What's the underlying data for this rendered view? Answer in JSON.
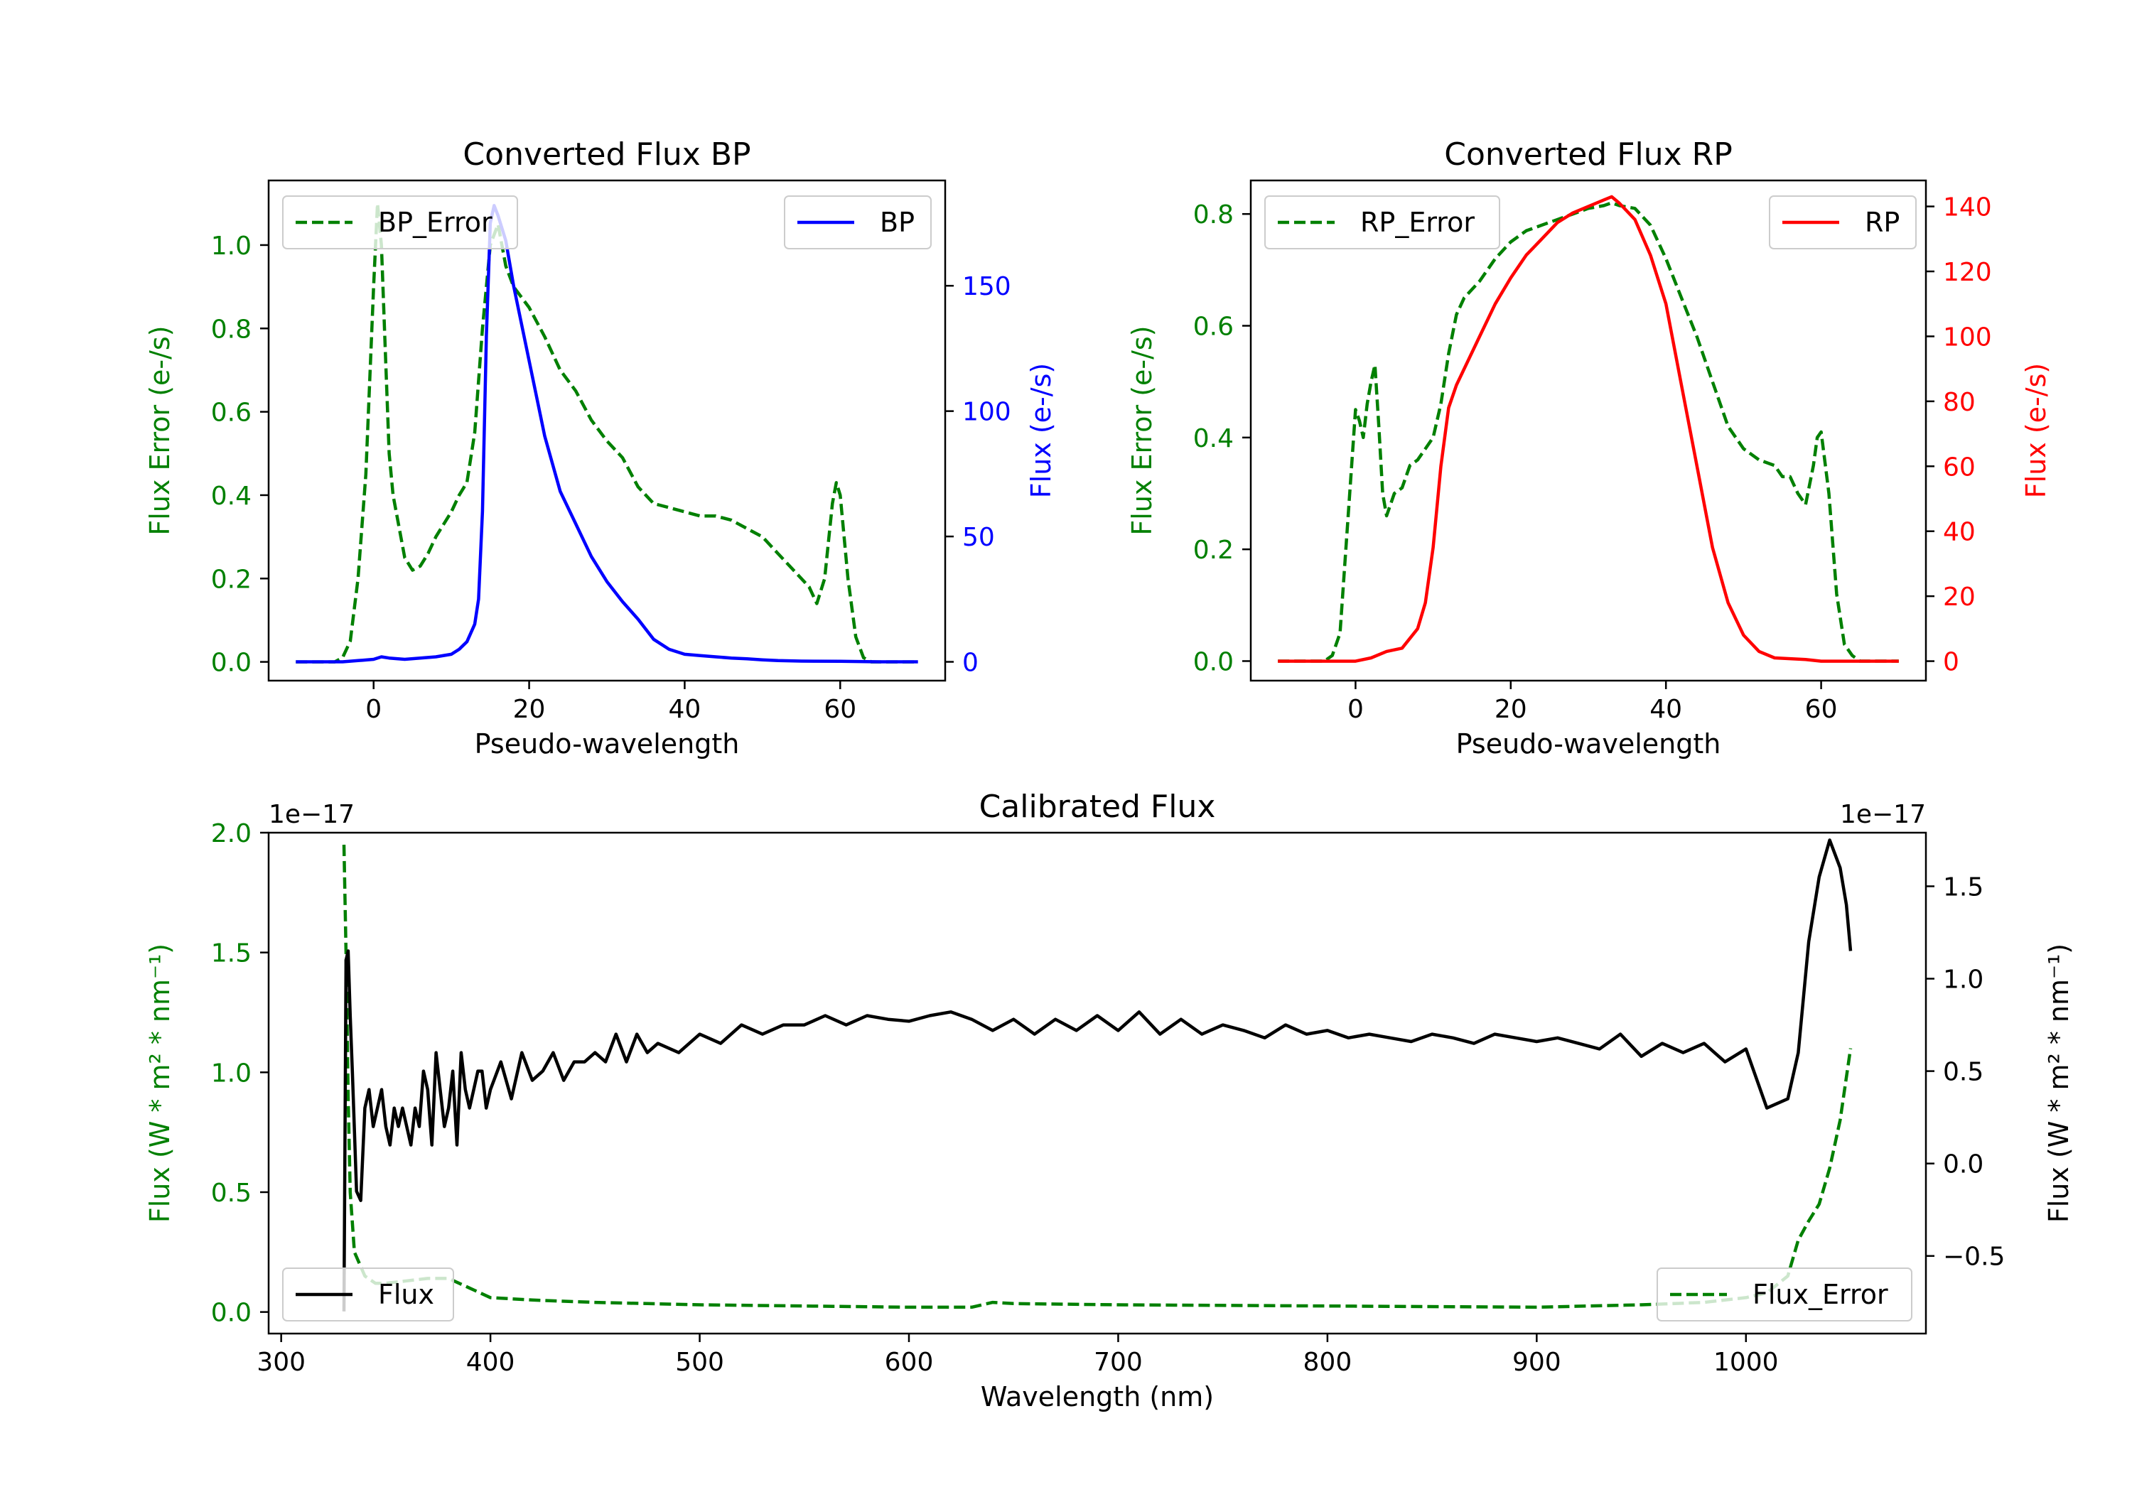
{
  "colors": {
    "green": "#008000",
    "blue": "#0000ff",
    "red": "#ff0000",
    "black": "#000000"
  },
  "chart_data": [
    {
      "id": "bp",
      "type": "line",
      "title": "Converted Flux BP",
      "xlabel": "Pseudo-wavelength",
      "ylabel_left": "Flux Error (e-/s)",
      "ylabel_right": "Flux (e-/s)",
      "xlim": [
        -13.5,
        73.5
      ],
      "ylim_left": [
        -0.045,
        1.155
      ],
      "ylim_right": [
        -7.5,
        192
      ],
      "xticks": [
        {
          "v": 0,
          "label": "0"
        },
        {
          "v": 20,
          "label": "20"
        },
        {
          "v": 40,
          "label": "40"
        },
        {
          "v": 60,
          "label": "60"
        }
      ],
      "yticks_left": [
        {
          "v": 0,
          "label": "0.0"
        },
        {
          "v": 0.2,
          "label": "0.2"
        },
        {
          "v": 0.4,
          "label": "0.4"
        },
        {
          "v": 0.6,
          "label": "0.6"
        },
        {
          "v": 0.8,
          "label": "0.8"
        },
        {
          "v": 1.0,
          "label": "1.0"
        }
      ],
      "yticks_right": [
        {
          "v": 0,
          "label": "0"
        },
        {
          "v": 50,
          "label": "50"
        },
        {
          "v": 100,
          "label": "100"
        },
        {
          "v": 150,
          "label": "150"
        }
      ],
      "series": [
        {
          "name": "BP_Error",
          "axis": "left",
          "color": "#008000",
          "dash": true,
          "legend": "top-left",
          "x": [
            -10,
            -5,
            -4,
            -3,
            -2,
            -1,
            0,
            0.5,
            1,
            1.5,
            2,
            2.5,
            3,
            4,
            5,
            6,
            7,
            8,
            9,
            10,
            11,
            12,
            13,
            14,
            15,
            16,
            17,
            18,
            20,
            22,
            24,
            26,
            28,
            30,
            32,
            34,
            36,
            38,
            40,
            42,
            44,
            46,
            48,
            50,
            52,
            54,
            56,
            57,
            58,
            59,
            59.5,
            60,
            61,
            62,
            63,
            64,
            65,
            70
          ],
          "y": [
            0,
            0,
            0.01,
            0.05,
            0.2,
            0.45,
            0.9,
            1.1,
            1.0,
            0.75,
            0.5,
            0.4,
            0.35,
            0.25,
            0.22,
            0.23,
            0.26,
            0.3,
            0.33,
            0.36,
            0.4,
            0.43,
            0.55,
            0.8,
            1.0,
            1.05,
            0.95,
            0.9,
            0.85,
            0.78,
            0.7,
            0.65,
            0.58,
            0.53,
            0.49,
            0.42,
            0.38,
            0.37,
            0.36,
            0.35,
            0.35,
            0.34,
            0.32,
            0.3,
            0.26,
            0.22,
            0.18,
            0.14,
            0.2,
            0.38,
            0.43,
            0.4,
            0.2,
            0.06,
            0.01,
            0,
            0,
            0
          ]
        },
        {
          "name": "BP",
          "axis": "right",
          "color": "#0000ff",
          "dash": false,
          "legend": "top-right",
          "x": [
            -10,
            -4,
            -2,
            0,
            1,
            2,
            4,
            6,
            8,
            10,
            11,
            12,
            13,
            13.5,
            14,
            14.5,
            15,
            15.5,
            16,
            17,
            18,
            20,
            22,
            24,
            26,
            28,
            30,
            32,
            34,
            36,
            38,
            40,
            42,
            44,
            46,
            48,
            50,
            52,
            55,
            60,
            65,
            70
          ],
          "y": [
            0,
            0,
            0.5,
            1,
            2,
            1.5,
            1,
            1.5,
            2,
            3,
            5,
            8,
            15,
            25,
            60,
            130,
            175,
            182,
            178,
            168,
            150,
            120,
            90,
            68,
            55,
            42,
            32,
            24,
            17,
            9,
            5,
            3,
            2.5,
            2,
            1.5,
            1.2,
            0.8,
            0.5,
            0.3,
            0.2,
            0,
            0
          ]
        }
      ],
      "legend": [
        "BP_Error",
        "BP"
      ]
    },
    {
      "id": "rp",
      "type": "line",
      "title": "Converted Flux RP",
      "xlabel": "Pseudo-wavelength",
      "ylabel_left": "Flux Error (e-/s)",
      "ylabel_right": "Flux (e-/s)",
      "xlim": [
        -13.5,
        73.5
      ],
      "ylim_left": [
        -0.035,
        0.86
      ],
      "ylim_right": [
        -6,
        148
      ],
      "xticks": [
        {
          "v": 0,
          "label": "0"
        },
        {
          "v": 20,
          "label": "20"
        },
        {
          "v": 40,
          "label": "40"
        },
        {
          "v": 60,
          "label": "60"
        }
      ],
      "yticks_left": [
        {
          "v": 0,
          "label": "0.0"
        },
        {
          "v": 0.2,
          "label": "0.2"
        },
        {
          "v": 0.4,
          "label": "0.4"
        },
        {
          "v": 0.6,
          "label": "0.6"
        },
        {
          "v": 0.8,
          "label": "0.8"
        }
      ],
      "yticks_right": [
        {
          "v": 0,
          "label": "0"
        },
        {
          "v": 20,
          "label": "20"
        },
        {
          "v": 40,
          "label": "40"
        },
        {
          "v": 60,
          "label": "60"
        },
        {
          "v": 80,
          "label": "80"
        },
        {
          "v": 100,
          "label": "100"
        },
        {
          "v": 120,
          "label": "120"
        },
        {
          "v": 140,
          "label": "140"
        }
      ],
      "series": [
        {
          "name": "RP_Error",
          "axis": "left",
          "color": "#008000",
          "dash": true,
          "legend": "top-left",
          "x": [
            -10,
            -5,
            -4,
            -3,
            -2,
            -1,
            0,
            0.5,
            1,
            1.5,
            2,
            2.5,
            3,
            3.5,
            4,
            5,
            6,
            7,
            8,
            9,
            10,
            11,
            12,
            13,
            14,
            16,
            18,
            20,
            22,
            24,
            26,
            28,
            30,
            32,
            33,
            34,
            36,
            38,
            40,
            42,
            44,
            46,
            48,
            50,
            52,
            54,
            55,
            56,
            57,
            58,
            59,
            59.5,
            60,
            61,
            62,
            63,
            64,
            65,
            70
          ],
          "y": [
            0,
            0,
            0,
            0.01,
            0.05,
            0.25,
            0.45,
            0.43,
            0.4,
            0.46,
            0.5,
            0.53,
            0.42,
            0.3,
            0.26,
            0.3,
            0.31,
            0.35,
            0.36,
            0.38,
            0.4,
            0.46,
            0.55,
            0.62,
            0.65,
            0.68,
            0.72,
            0.75,
            0.77,
            0.78,
            0.79,
            0.8,
            0.81,
            0.815,
            0.82,
            0.815,
            0.81,
            0.78,
            0.72,
            0.65,
            0.58,
            0.5,
            0.42,
            0.38,
            0.36,
            0.35,
            0.33,
            0.33,
            0.3,
            0.28,
            0.35,
            0.4,
            0.41,
            0.3,
            0.12,
            0.03,
            0.01,
            0,
            0
          ]
        },
        {
          "name": "RP",
          "axis": "right",
          "color": "#ff0000",
          "dash": false,
          "legend": "top-right",
          "x": [
            -10,
            -2,
            0,
            2,
            4,
            6,
            8,
            9,
            10,
            11,
            12,
            13,
            14,
            16,
            18,
            20,
            22,
            24,
            26,
            28,
            30,
            32,
            33,
            34,
            36,
            38,
            40,
            42,
            44,
            46,
            48,
            50,
            52,
            54,
            58,
            60,
            62,
            65,
            70
          ],
          "y": [
            0,
            0,
            0,
            1,
            3,
            4,
            10,
            18,
            35,
            60,
            78,
            85,
            90,
            100,
            110,
            118,
            125,
            130,
            135,
            138,
            140,
            142,
            143,
            141,
            136,
            125,
            110,
            85,
            60,
            35,
            18,
            8,
            3,
            1,
            0.5,
            0,
            0,
            0,
            0
          ]
        }
      ],
      "legend": [
        "RP_Error",
        "RP"
      ]
    },
    {
      "id": "calibrated",
      "type": "line",
      "title": "Calibrated Flux",
      "xlabel": "Wavelength (nm)",
      "ylabel_left": "Flux (W * m² * nm⁻¹)",
      "ylabel_right": "Flux (W * m² * nm⁻¹)",
      "offset_left": "1e−17",
      "offset_right": "1e−17",
      "xlim": [
        294,
        1086
      ],
      "ylim_left": [
        -0.09,
        2.0
      ],
      "ylim_right": [
        -0.92,
        1.79
      ],
      "xticks": [
        {
          "v": 300,
          "label": "300"
        },
        {
          "v": 400,
          "label": "400"
        },
        {
          "v": 500,
          "label": "500"
        },
        {
          "v": 600,
          "label": "600"
        },
        {
          "v": 700,
          "label": "700"
        },
        {
          "v": 800,
          "label": "800"
        },
        {
          "v": 900,
          "label": "900"
        },
        {
          "v": 1000,
          "label": "1000"
        }
      ],
      "yticks_left": [
        {
          "v": 0,
          "label": "0.0"
        },
        {
          "v": 0.5,
          "label": "0.5"
        },
        {
          "v": 1.0,
          "label": "1.0"
        },
        {
          "v": 1.5,
          "label": "1.5"
        },
        {
          "v": 2.0,
          "label": "2.0"
        }
      ],
      "yticks_right": [
        {
          "v": -0.5,
          "label": "−0.5"
        },
        {
          "v": 0,
          "label": "0.0"
        },
        {
          "v": 0.5,
          "label": "0.5"
        },
        {
          "v": 1.0,
          "label": "1.0"
        },
        {
          "v": 1.5,
          "label": "1.5"
        }
      ],
      "series": [
        {
          "name": "Flux_Error",
          "axis": "left",
          "color": "#008000",
          "dash": true,
          "legend": "bottom-right",
          "x": [
            330,
            331,
            332,
            333,
            335,
            340,
            345,
            350,
            360,
            370,
            380,
            390,
            400,
            420,
            450,
            500,
            550,
            600,
            630,
            640,
            650,
            700,
            800,
            900,
            950,
            980,
            1000,
            1010,
            1020,
            1025,
            1030,
            1035,
            1040,
            1045,
            1050
          ],
          "y": [
            1.95,
            1.5,
            0.9,
            0.5,
            0.25,
            0.15,
            0.12,
            0.12,
            0.13,
            0.14,
            0.14,
            0.1,
            0.06,
            0.05,
            0.04,
            0.03,
            0.025,
            0.02,
            0.02,
            0.04,
            0.035,
            0.03,
            0.025,
            0.02,
            0.03,
            0.04,
            0.06,
            0.08,
            0.15,
            0.3,
            0.38,
            0.45,
            0.6,
            0.8,
            1.1
          ]
        },
        {
          "name": "Flux",
          "axis": "right",
          "color": "#000000",
          "dash": false,
          "legend": "bottom-left",
          "x": [
            330,
            331,
            332,
            333,
            334,
            336,
            338,
            340,
            342,
            344,
            346,
            348,
            350,
            352,
            354,
            356,
            358,
            360,
            362,
            364,
            366,
            368,
            370,
            372,
            374,
            376,
            378,
            380,
            382,
            384,
            386,
            388,
            390,
            392,
            394,
            396,
            398,
            400,
            405,
            410,
            415,
            420,
            425,
            430,
            435,
            440,
            445,
            450,
            455,
            460,
            465,
            470,
            475,
            480,
            490,
            500,
            510,
            520,
            530,
            540,
            550,
            560,
            570,
            580,
            590,
            600,
            610,
            620,
            630,
            640,
            650,
            660,
            670,
            680,
            690,
            700,
            710,
            720,
            730,
            740,
            750,
            760,
            770,
            780,
            790,
            800,
            810,
            820,
            830,
            840,
            850,
            860,
            870,
            880,
            890,
            900,
            910,
            920,
            930,
            940,
            950,
            960,
            970,
            980,
            990,
            1000,
            1010,
            1020,
            1025,
            1030,
            1035,
            1040,
            1045,
            1048,
            1050
          ],
          "y": [
            -0.8,
            1.1,
            1.15,
            0.8,
            0.5,
            -0.15,
            -0.2,
            0.3,
            0.4,
            0.2,
            0.3,
            0.4,
            0.2,
            0.1,
            0.3,
            0.2,
            0.3,
            0.2,
            0.1,
            0.3,
            0.2,
            0.5,
            0.4,
            0.1,
            0.6,
            0.4,
            0.2,
            0.3,
            0.5,
            0.1,
            0.6,
            0.4,
            0.3,
            0.4,
            0.5,
            0.5,
            0.3,
            0.4,
            0.55,
            0.35,
            0.6,
            0.45,
            0.5,
            0.6,
            0.45,
            0.55,
            0.55,
            0.6,
            0.55,
            0.7,
            0.55,
            0.7,
            0.6,
            0.65,
            0.6,
            0.7,
            0.65,
            0.75,
            0.7,
            0.75,
            0.75,
            0.8,
            0.75,
            0.8,
            0.78,
            0.77,
            0.8,
            0.82,
            0.78,
            0.72,
            0.78,
            0.7,
            0.78,
            0.72,
            0.8,
            0.72,
            0.82,
            0.7,
            0.78,
            0.7,
            0.75,
            0.72,
            0.68,
            0.75,
            0.7,
            0.72,
            0.68,
            0.7,
            0.68,
            0.66,
            0.7,
            0.68,
            0.65,
            0.7,
            0.68,
            0.66,
            0.68,
            0.65,
            0.62,
            0.7,
            0.58,
            0.65,
            0.6,
            0.65,
            0.55,
            0.62,
            0.3,
            0.35,
            0.6,
            1.2,
            1.55,
            1.75,
            1.6,
            1.4,
            1.15
          ]
        }
      ],
      "legend": [
        "Flux",
        "Flux_Error"
      ]
    }
  ]
}
